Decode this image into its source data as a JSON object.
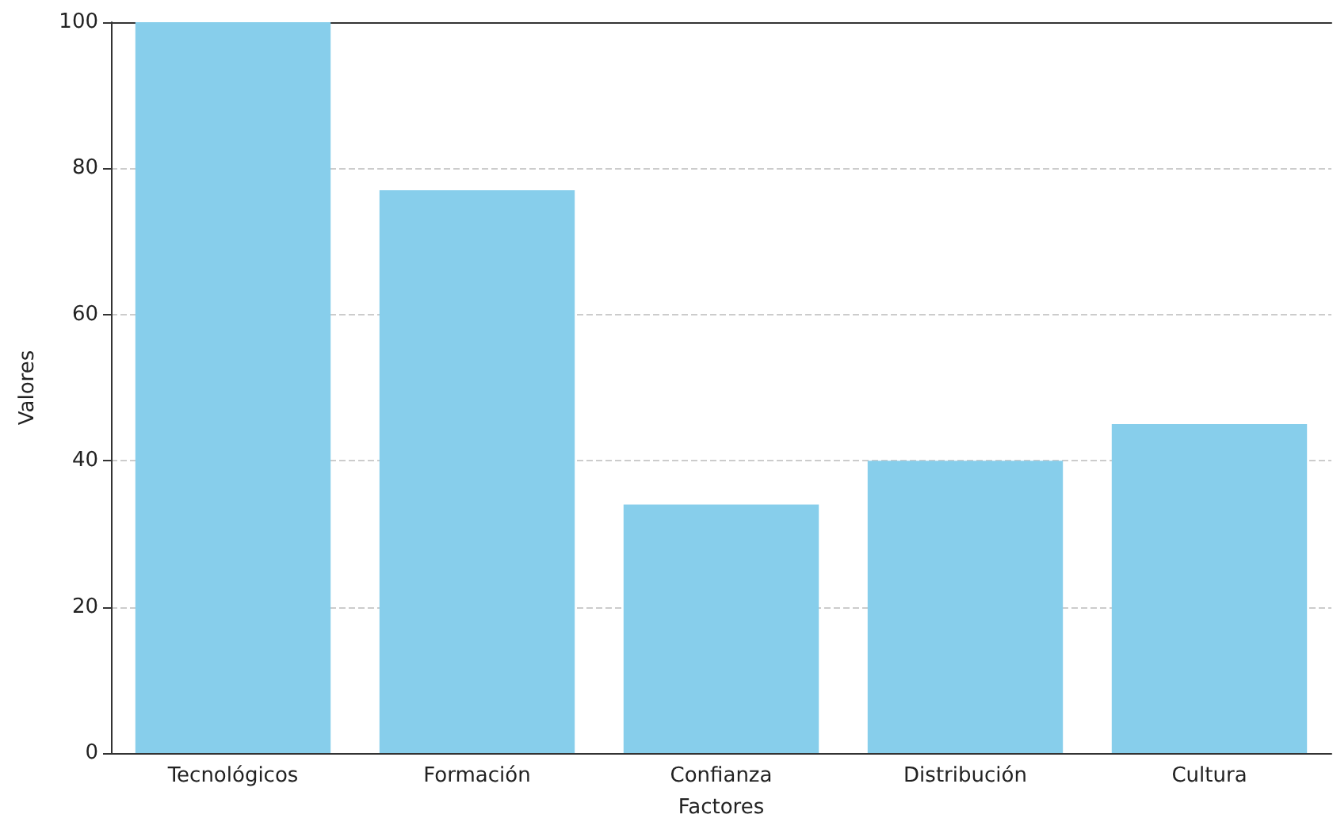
{
  "chart_data": {
    "type": "bar",
    "xlabel": "Factores",
    "ylabel": "Valores",
    "categories": [
      "Tecnológicos",
      "Formación",
      "Confianza",
      "Distribución",
      "Cultura"
    ],
    "values": [
      100,
      77,
      34,
      40,
      45
    ],
    "color": "#87ceeb",
    "ylim": [
      0,
      100
    ],
    "yticks": [
      0,
      20,
      40,
      60,
      80,
      100
    ],
    "grid": "y"
  }
}
